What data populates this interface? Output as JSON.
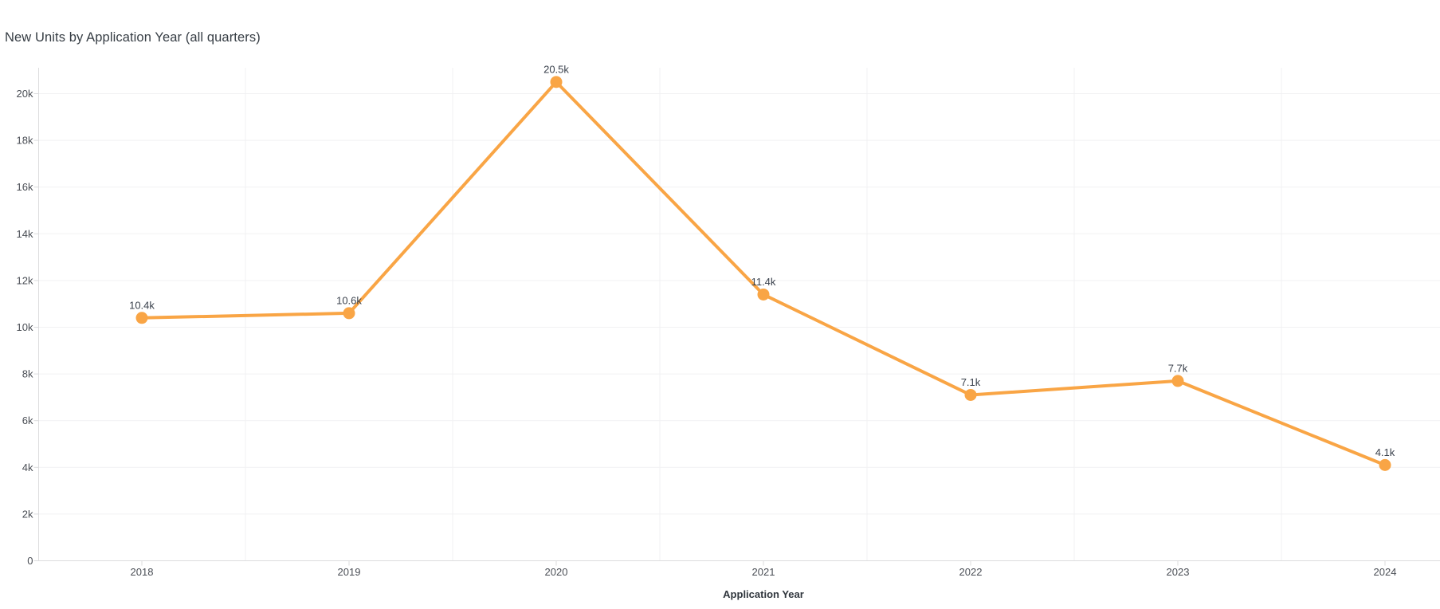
{
  "chart": {
    "title": "New Units by Application Year (all quarters)"
  },
  "colors": {
    "series": "#F9A545",
    "marker": "#F9A545",
    "grid": "#F1F1F3",
    "axis": "#DCDCDE",
    "tick_label": "#4A4E55",
    "point_label": "#3A414C",
    "title_text": "#363D44",
    "axis_title": "#30363D",
    "background": "#FFFFFF"
  },
  "chart_data": {
    "type": "line",
    "title": "New Units by Application Year (all quarters)",
    "xlabel": "Application Year",
    "ylabel": "",
    "categories": [
      "2018",
      "2019",
      "2020",
      "2021",
      "2022",
      "2023",
      "2024"
    ],
    "values": [
      10400,
      10600,
      20500,
      11400,
      7100,
      7700,
      4100
    ],
    "point_labels": [
      "10.4k",
      "10.6k",
      "20.5k",
      "11.4k",
      "7.1k",
      "7.7k",
      "4.1k"
    ],
    "y_ticks": [
      {
        "value": 0,
        "label": "0"
      },
      {
        "value": 2000,
        "label": "2k"
      },
      {
        "value": 4000,
        "label": "4k"
      },
      {
        "value": 6000,
        "label": "6k"
      },
      {
        "value": 8000,
        "label": "8k"
      },
      {
        "value": 10000,
        "label": "10k"
      },
      {
        "value": 12000,
        "label": "12k"
      },
      {
        "value": 14000,
        "label": "14k"
      },
      {
        "value": 16000,
        "label": "16k"
      },
      {
        "value": 18000,
        "label": "18k"
      },
      {
        "value": 20000,
        "label": "20k"
      }
    ],
    "ylim": [
      0,
      21100
    ],
    "grid": true,
    "legend_position": "none",
    "series_color": "#F9A545"
  }
}
